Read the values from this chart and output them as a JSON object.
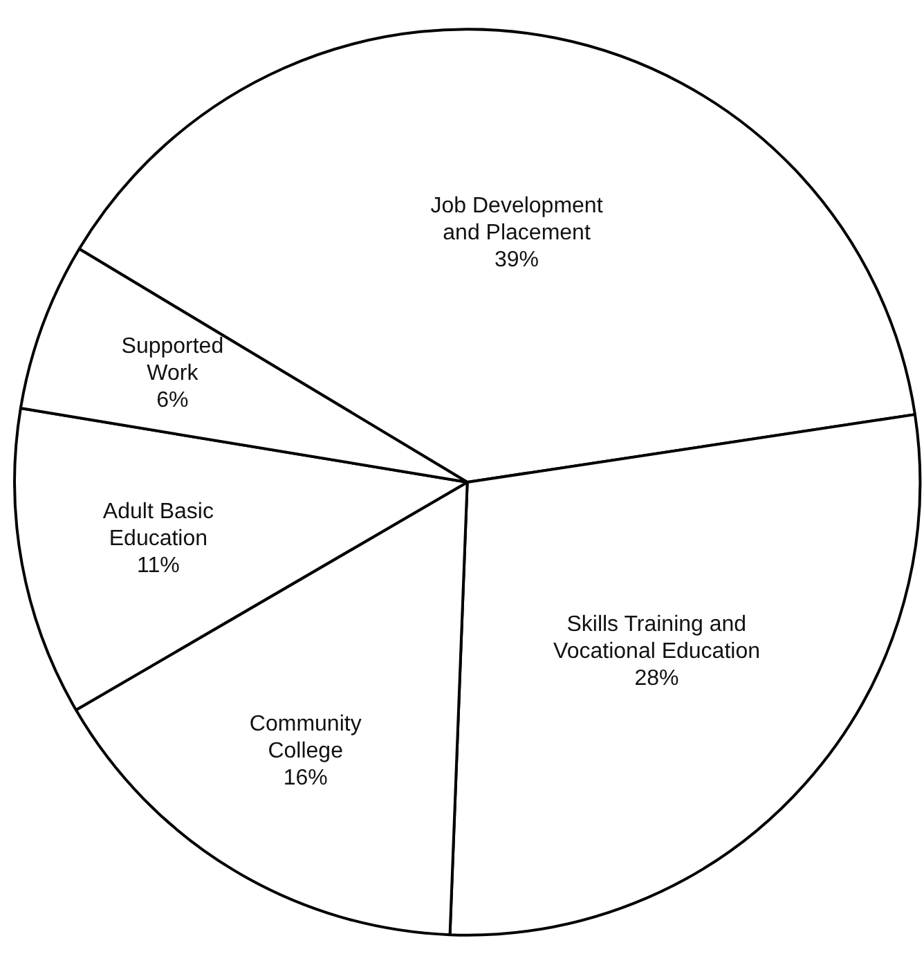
{
  "chart_data": {
    "type": "pie",
    "categories": [
      "Job Development\nand Placement",
      "Skills Training and\nVocational Education",
      "Community\nCollege",
      "Adult Basic\nEducation",
      "Supported\nWork"
    ],
    "values": [
      39,
      28,
      16,
      11,
      6
    ],
    "value_labels": [
      "39%",
      "28%",
      "16%",
      "11%",
      "6%"
    ],
    "colors": [
      "#ffffff",
      "#ffffff",
      "#ffffff",
      "#ffffff",
      "#ffffff"
    ]
  }
}
